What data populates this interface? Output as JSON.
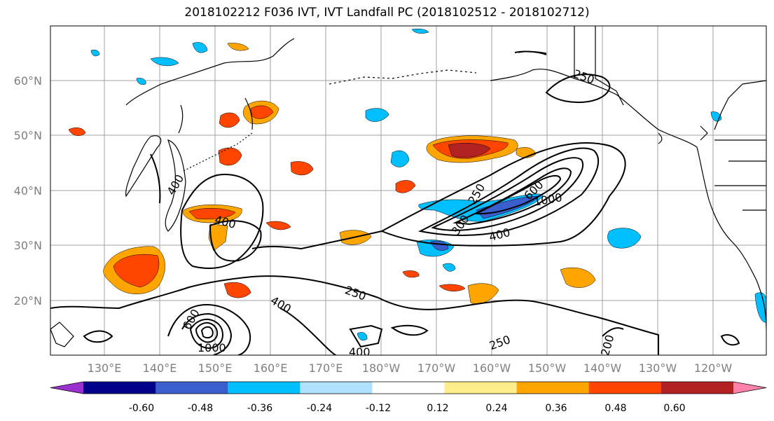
{
  "title": "2018102212 F036 IVT, IVT Landfall PC (2018102512 - 2018102712)",
  "map": {
    "lat_labels": [
      "60°N",
      "50°N",
      "40°N",
      "30°N",
      "20°N"
    ],
    "lon_labels": [
      "130°E",
      "140°E",
      "150°E",
      "160°E",
      "170°E",
      "180°W",
      "170°W",
      "160°W",
      "150°W",
      "140°W",
      "130°W",
      "120°W"
    ],
    "contour_labels": [
      "250",
      "250",
      "250",
      "250",
      "400",
      "400",
      "400",
      "400",
      "400",
      "600",
      "600",
      "1000",
      "1000",
      "200",
      "300"
    ]
  },
  "colorbar": {
    "colors": [
      "#9b30d0",
      "#00008b",
      "#3a5fcd",
      "#00bfff",
      "#b0e2ff",
      "#ffffff",
      "#ffec8b",
      "#ffa500",
      "#ff4500",
      "#b22222",
      "#ff82ab"
    ],
    "tick_labels": [
      "-0.60",
      "-0.48",
      "-0.36",
      "-0.24",
      "-0.12",
      "0.12",
      "0.24",
      "0.36",
      "0.48",
      "0.60"
    ]
  },
  "colors": {
    "grid": "#a0a0a0",
    "coast": "#000000",
    "contour": "#000000"
  }
}
